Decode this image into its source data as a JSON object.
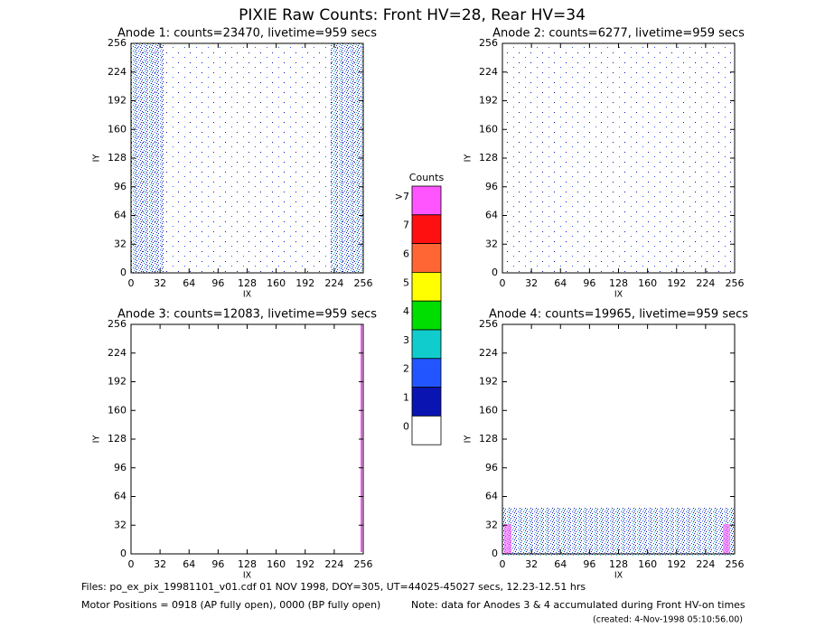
{
  "title": "PIXIE Raw Counts:  Front HV=28, Rear HV=34",
  "chart_data": [
    {
      "type": "heatmap",
      "title": "Anode 1: counts=23470, livetime=959 secs",
      "xlabel": "IX",
      "ylabel": "IY",
      "xlim": [
        0,
        256
      ],
      "ylim": [
        0,
        256
      ],
      "xticks": [
        0,
        32,
        64,
        96,
        128,
        160,
        192,
        224,
        256
      ],
      "yticks": [
        0,
        32,
        64,
        96,
        128,
        160,
        192,
        224,
        256
      ]
    },
    {
      "type": "heatmap",
      "title": "Anode 2: counts=6277, livetime=959 secs",
      "xlabel": "IX",
      "ylabel": "IY",
      "xlim": [
        0,
        256
      ],
      "ylim": [
        0,
        256
      ],
      "xticks": [
        0,
        32,
        64,
        96,
        128,
        160,
        192,
        224,
        256
      ],
      "yticks": [
        0,
        32,
        64,
        96,
        128,
        160,
        192,
        224,
        256
      ]
    },
    {
      "type": "heatmap",
      "title": "Anode 3: counts=12083, livetime=959 secs",
      "xlabel": "IX",
      "ylabel": "IY",
      "xlim": [
        0,
        256
      ],
      "ylim": [
        0,
        256
      ],
      "xticks": [
        0,
        32,
        64,
        96,
        128,
        160,
        192,
        224,
        256
      ],
      "yticks": [
        0,
        32,
        64,
        96,
        128,
        160,
        192,
        224,
        256
      ]
    },
    {
      "type": "heatmap",
      "title": "Anode 4: counts=19965, livetime=959 secs",
      "xlabel": "IX",
      "ylabel": "IY",
      "xlim": [
        0,
        256
      ],
      "ylim": [
        0,
        256
      ],
      "xticks": [
        0,
        32,
        64,
        96,
        128,
        160,
        192,
        224,
        256
      ],
      "yticks": [
        0,
        32,
        64,
        96,
        128,
        160,
        192,
        224,
        256
      ]
    }
  ],
  "colorbar": {
    "title": "Counts",
    "levels": [
      {
        "label": ">7",
        "color": "#ff55ff"
      },
      {
        "label": "7",
        "color": "#ff1010"
      },
      {
        "label": "6",
        "color": "#ff6633"
      },
      {
        "label": "5",
        "color": "#ffff00"
      },
      {
        "label": "4",
        "color": "#00dd00"
      },
      {
        "label": "3",
        "color": "#11cccc"
      },
      {
        "label": "2",
        "color": "#2255ff"
      },
      {
        "label": "1",
        "color": "#0a14b0"
      },
      {
        "label": "0",
        "color": "#ffffff"
      }
    ]
  },
  "footer": {
    "files": "Files: po_ex_pix_19981101_v01.cdf    01 NOV 1998, DOY=305, UT=44025-45027 secs, 12.23-12.51 hrs",
    "motor": "Motor Positions = 0918 (AP fully open), 0000 (BP fully open)",
    "note": "Note: data for Anodes 3 & 4 accumulated during Front HV-on times",
    "created": "(created:  4-Nov-1998 05:10:56.00)"
  }
}
